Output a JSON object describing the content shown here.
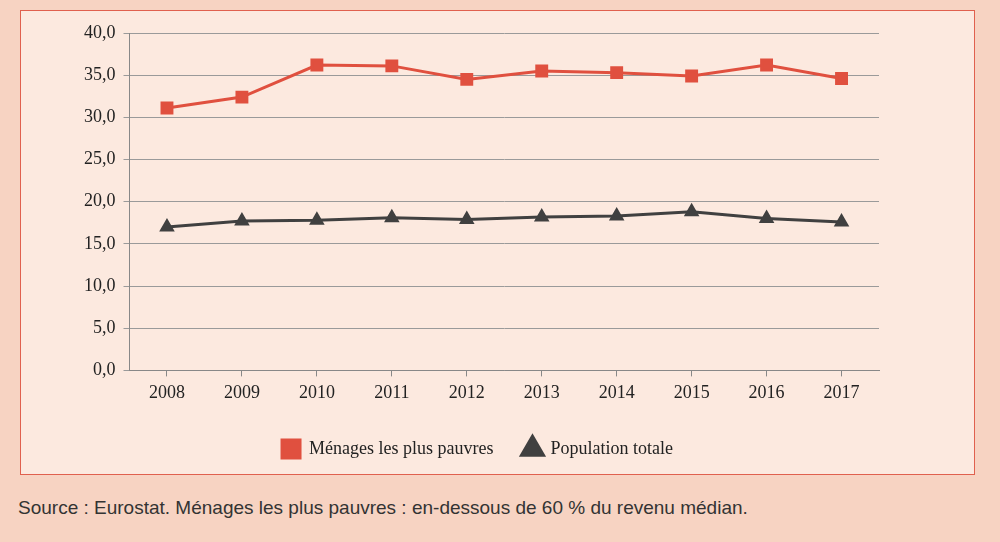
{
  "chart_data": {
    "type": "line",
    "source": "Source : Eurostat. Ménages les plus pauvres : en-dessous de 60 % du revenu médian.",
    "categories": [
      "2008",
      "2009",
      "2010",
      "2011",
      "2012",
      "2013",
      "2014",
      "2015",
      "2016",
      "2017"
    ],
    "series": [
      {
        "name": "Ménages les plus pauvres",
        "color": "#e0503f",
        "marker": "square",
        "line_style": "solid",
        "values": [
          31.1,
          32.4,
          36.2,
          36.1,
          34.5,
          35.5,
          35.3,
          34.9,
          36.2,
          34.6
        ]
      },
      {
        "name": "Population totale",
        "color": "#404040",
        "marker": "triangle",
        "line_style": "solid",
        "values": [
          17.0,
          17.7,
          17.8,
          18.1,
          17.9,
          18.2,
          18.3,
          18.8,
          18.0,
          17.6
        ]
      }
    ],
    "ylim": [
      0,
      40
    ],
    "yticks": [
      {
        "value": 0,
        "label": "0,0"
      },
      {
        "value": 5,
        "label": "5,0"
      },
      {
        "value": 10,
        "label": "10,0"
      },
      {
        "value": 15,
        "label": "15,0"
      },
      {
        "value": 20,
        "label": "20,0"
      },
      {
        "value": 25,
        "label": "25,0"
      },
      {
        "value": 30,
        "label": "30,0"
      },
      {
        "value": 35,
        "label": "35,0"
      },
      {
        "value": 40,
        "label": "40,0"
      }
    ],
    "grid": true,
    "legend": "bottom"
  }
}
